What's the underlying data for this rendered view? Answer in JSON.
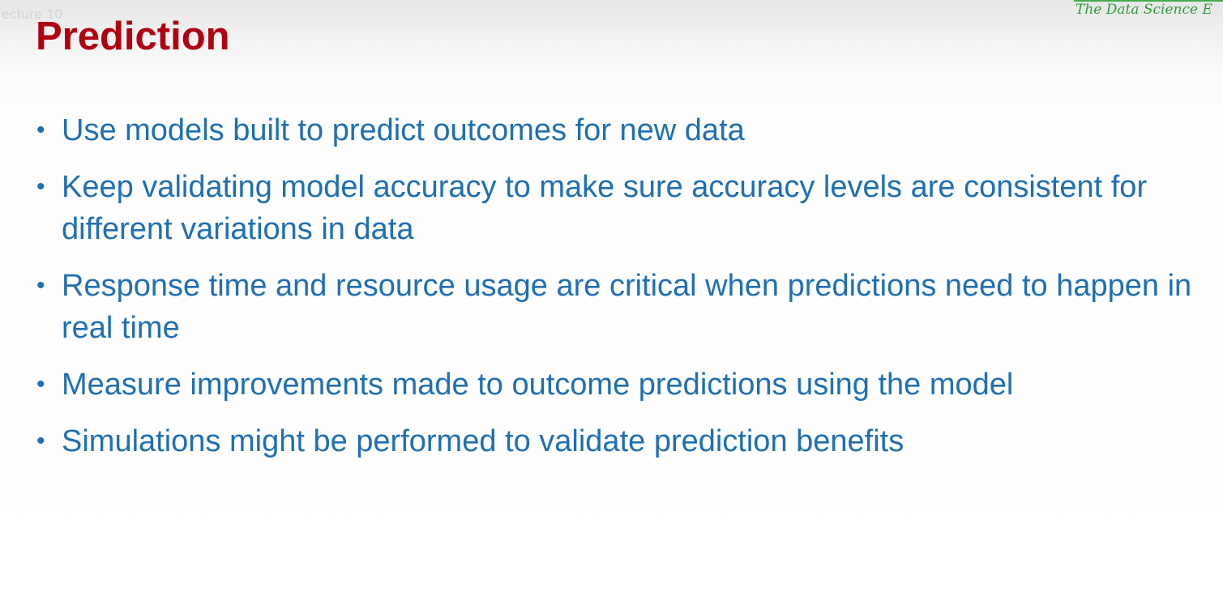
{
  "header": {
    "faded_text": "ecture 10",
    "brand": "The Data Science E"
  },
  "slide": {
    "title": "Prediction",
    "bullet_symbol": "•",
    "bullets": [
      "Use models built to predict outcomes for new data",
      "Keep validating model accuracy to make sure accuracy levels are consistent for different variations in data",
      "Response time and resource usage are critical when predictions need to happen in real time",
      "Measure improvements made to outcome predictions using the model",
      "Simulations might be performed to validate prediction benefits"
    ]
  },
  "colors": {
    "title": "#b00012",
    "bullet_text": "#1f6fb2",
    "brand": "#2e9c3c"
  }
}
